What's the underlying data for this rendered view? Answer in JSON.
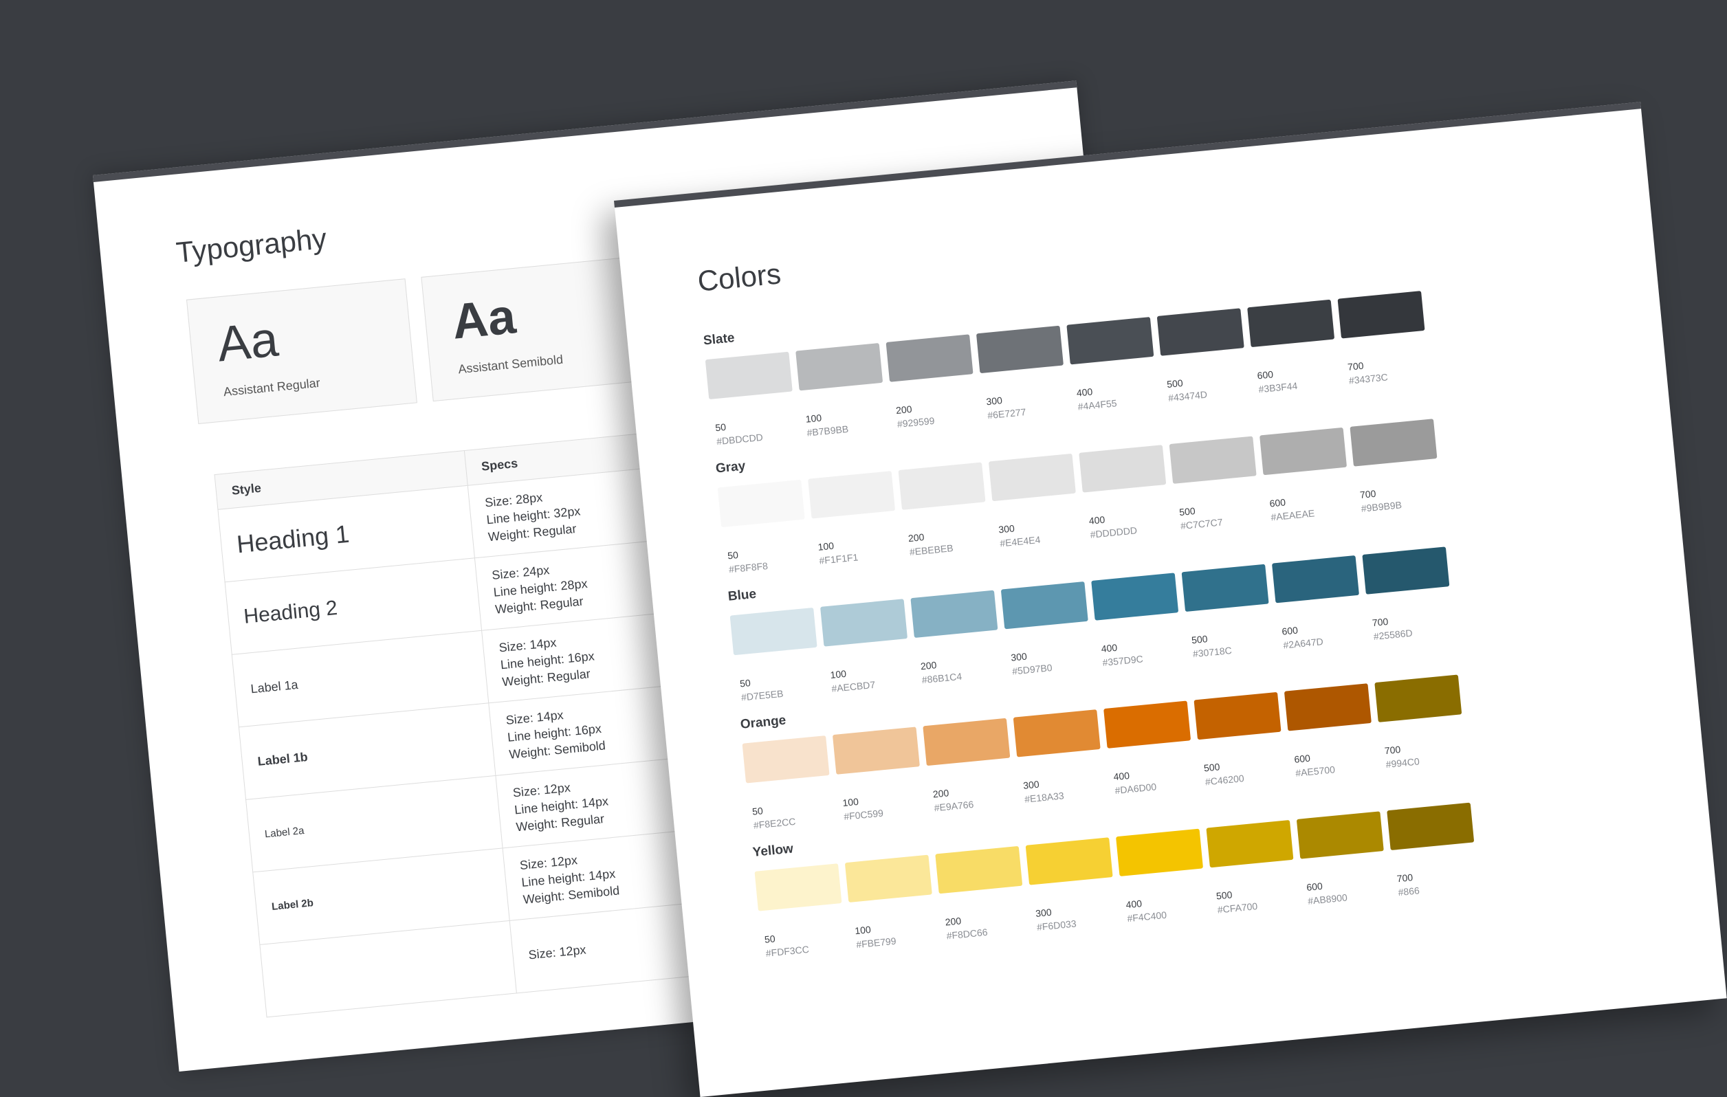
{
  "typography": {
    "title": "Typography",
    "fonts": [
      {
        "sample": "Aa",
        "name": "Assistant Regular"
      },
      {
        "sample": "Aa",
        "name": "Assistant Semibold"
      }
    ],
    "table": {
      "headers": [
        "Style",
        "Specs"
      ],
      "rows": [
        {
          "style": "Heading 1",
          "specs": [
            "Size: 28px",
            "Line height: 32px",
            "Weight: Regular"
          ]
        },
        {
          "style": "Heading 2",
          "specs": [
            "Size: 24px",
            "Line height: 28px",
            "Weight: Regular"
          ]
        },
        {
          "style": "Label 1a",
          "specs": [
            "Size: 14px",
            "Line height: 16px",
            "Weight: Regular"
          ]
        },
        {
          "style": "Label 1b",
          "specs": [
            "Size: 14px",
            "Line height: 16px",
            "Weight: Semibold"
          ]
        },
        {
          "style": "Label 2a",
          "specs": [
            "Size: 12px",
            "Line height: 14px",
            "Weight: Regular"
          ]
        },
        {
          "style": "Label 2b",
          "specs": [
            "Size: 12px",
            "Line height: 14px",
            "Weight: Semibold"
          ]
        },
        {
          "style": "",
          "specs": [
            "Size: 12px",
            "",
            ""
          ]
        }
      ]
    }
  },
  "colors": {
    "title": "Colors",
    "palettes": [
      {
        "name": "Slate",
        "swatches": [
          {
            "step": "50",
            "hex": "#DBDCDD"
          },
          {
            "step": "100",
            "hex": "#B7B9BB"
          },
          {
            "step": "200",
            "hex": "#929599"
          },
          {
            "step": "300",
            "hex": "#6E7277"
          },
          {
            "step": "400",
            "hex": "#4A4F55"
          },
          {
            "step": "500",
            "hex": "#43474D"
          },
          {
            "step": "600",
            "hex": "#3B3F44"
          },
          {
            "step": "700",
            "hex": "#34373C"
          }
        ]
      },
      {
        "name": "Gray",
        "swatches": [
          {
            "step": "50",
            "hex": "#F8F8F8"
          },
          {
            "step": "100",
            "hex": "#F1F1F1"
          },
          {
            "step": "200",
            "hex": "#EBEBEB"
          },
          {
            "step": "300",
            "hex": "#E4E4E4"
          },
          {
            "step": "400",
            "hex": "#DDDDDD"
          },
          {
            "step": "500",
            "hex": "#C7C7C7"
          },
          {
            "step": "600",
            "hex": "#AEAEAE"
          },
          {
            "step": "700",
            "hex": "#9B9B9B"
          }
        ]
      },
      {
        "name": "Blue",
        "swatches": [
          {
            "step": "50",
            "hex": "#D7E5EB"
          },
          {
            "step": "100",
            "hex": "#AECBD7"
          },
          {
            "step": "200",
            "hex": "#86B1C4"
          },
          {
            "step": "300",
            "hex": "#5D97B0"
          },
          {
            "step": "400",
            "hex": "#357D9C"
          },
          {
            "step": "500",
            "hex": "#30718C"
          },
          {
            "step": "600",
            "hex": "#2A647D"
          },
          {
            "step": "700",
            "hex": "#25586D"
          }
        ]
      },
      {
        "name": "Orange",
        "swatches": [
          {
            "step": "50",
            "hex": "#F8E2CC"
          },
          {
            "step": "100",
            "hex": "#F0C599"
          },
          {
            "step": "200",
            "hex": "#E9A766"
          },
          {
            "step": "300",
            "hex": "#E18A33"
          },
          {
            "step": "400",
            "hex": "#DA6D00"
          },
          {
            "step": "500",
            "hex": "#C46200"
          },
          {
            "step": "600",
            "hex": "#AE5700"
          },
          {
            "step": "700",
            "hex": "#994C0"
          }
        ]
      },
      {
        "name": "Yellow",
        "swatches": [
          {
            "step": "50",
            "hex": "#FDF3CC"
          },
          {
            "step": "100",
            "hex": "#FBE799"
          },
          {
            "step": "200",
            "hex": "#F8DC66"
          },
          {
            "step": "300",
            "hex": "#F6D033"
          },
          {
            "step": "400",
            "hex": "#F4C400"
          },
          {
            "step": "500",
            "hex": "#CFA700"
          },
          {
            "step": "600",
            "hex": "#AB8900"
          },
          {
            "step": "700",
            "hex": "#866"
          }
        ]
      }
    ]
  }
}
